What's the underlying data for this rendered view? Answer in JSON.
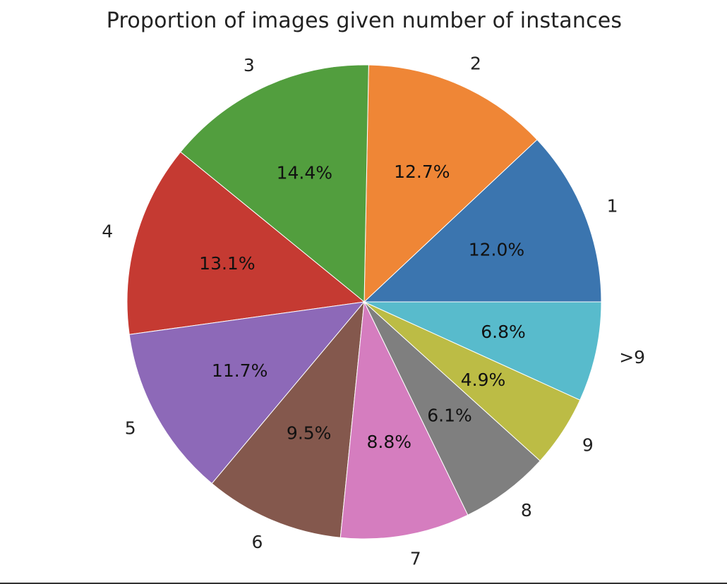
{
  "chart_data": {
    "type": "pie",
    "title": "Proportion of images given number of instances",
    "categories": [
      "1",
      "2",
      "3",
      "4",
      "5",
      "6",
      "7",
      "8",
      "9",
      ">9"
    ],
    "values": [
      12.0,
      12.7,
      14.4,
      13.1,
      11.7,
      9.5,
      8.8,
      6.1,
      4.9,
      6.8
    ],
    "value_labels": [
      "12.0%",
      "12.7%",
      "14.4%",
      "13.1%",
      "11.7%",
      "9.5%",
      "8.8%",
      "6.1%",
      "4.9%",
      "6.8%"
    ],
    "colors": [
      "#3b75af",
      "#ef8636",
      "#529e3e",
      "#c53a32",
      "#8d69b8",
      "#84584d",
      "#d57dbf",
      "#7f7f7f",
      "#bcbc45",
      "#58bbcc"
    ],
    "start_angle_deg": 0,
    "direction": "counterclockwise",
    "legend": "none"
  }
}
